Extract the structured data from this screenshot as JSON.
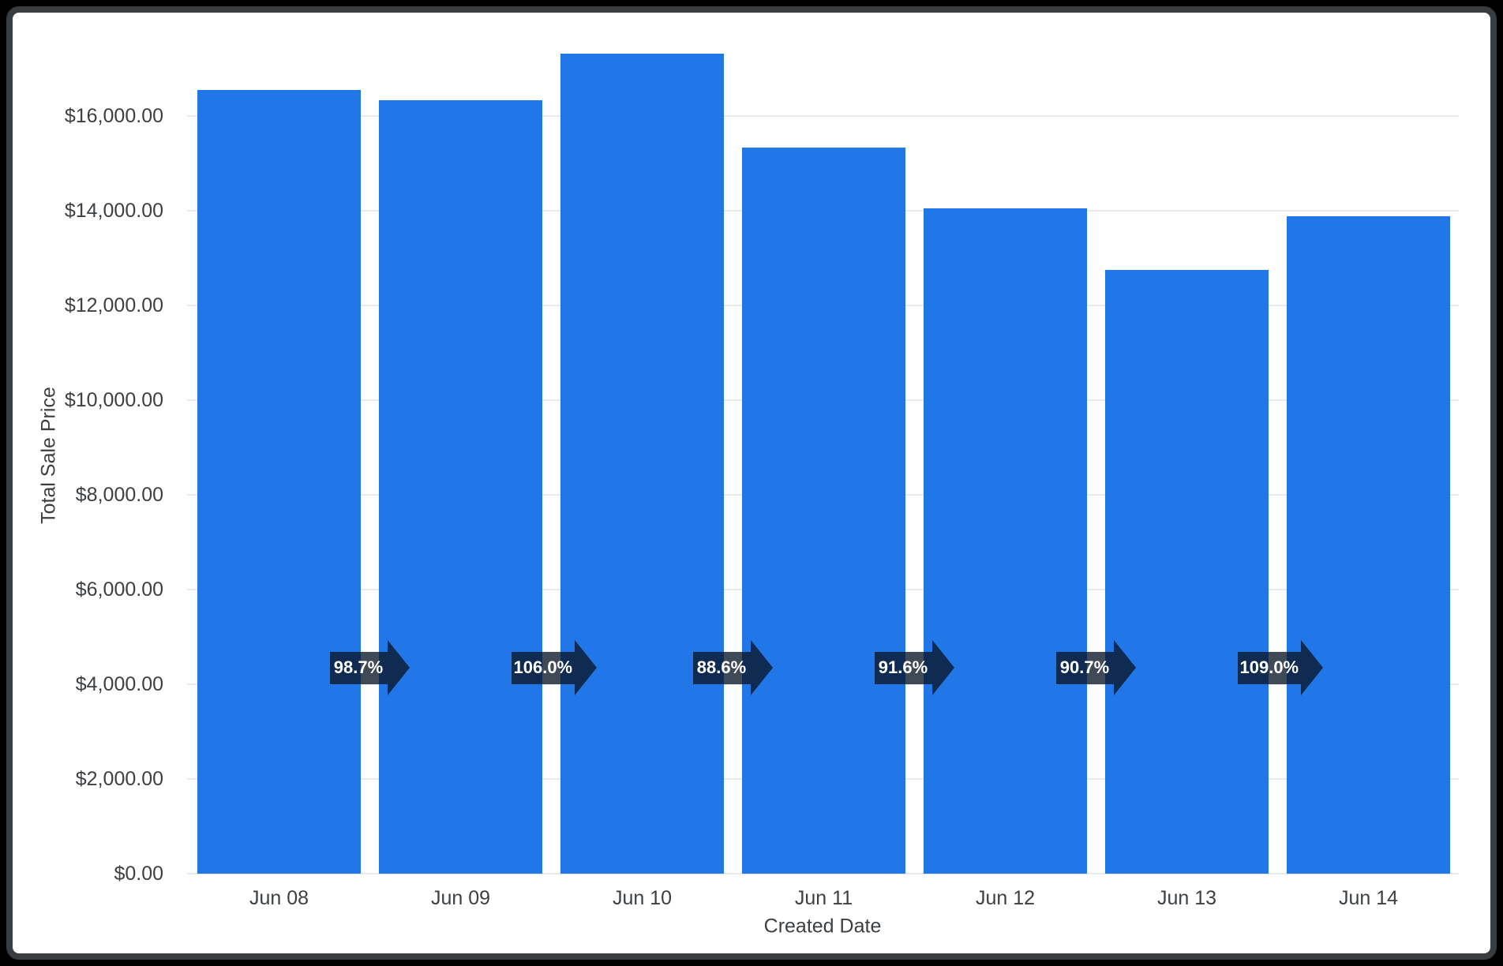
{
  "window": {
    "background": "#000000",
    "frame_color": "#3a3d40",
    "card_color": "#ffffff"
  },
  "axes": {
    "y_title": "Total Sale Price",
    "x_title": "Created Date"
  },
  "colors": {
    "bar": "#2176e8",
    "grid": "#e8eaed",
    "axis_text": "#3c4043",
    "badge_bg": "rgba(10,22,38,0.78)",
    "badge_text": "#ffffff"
  },
  "chart_data": {
    "type": "bar",
    "title": "",
    "xlabel": "Created Date",
    "ylabel": "Total Sale Price",
    "categories": [
      "Jun 08",
      "Jun 09",
      "Jun 10",
      "Jun 11",
      "Jun 12",
      "Jun 13",
      "Jun 14"
    ],
    "values": [
      16550,
      16335,
      17315,
      15340,
      14050,
      12745,
      13890
    ],
    "value_format": "currency_usd",
    "ylim": [
      0,
      17800
    ],
    "y_ticks": [
      0,
      2000,
      4000,
      6000,
      8000,
      10000,
      12000,
      14000,
      16000
    ],
    "y_tick_labels": [
      "$0.00",
      "$2,000.00",
      "$4,000.00",
      "$6,000.00",
      "$8,000.00",
      "$10,000.00",
      "$12,000.00",
      "$14,000.00",
      "$16,000.00"
    ],
    "grid": "horizontal",
    "legend": "none",
    "change_badges": [
      "98.7%",
      "106.0%",
      "88.6%",
      "91.6%",
      "90.7%",
      "109.0%"
    ],
    "change_badges_meaning": "period-over-period ratio shown between adjacent bars with right arrow"
  }
}
